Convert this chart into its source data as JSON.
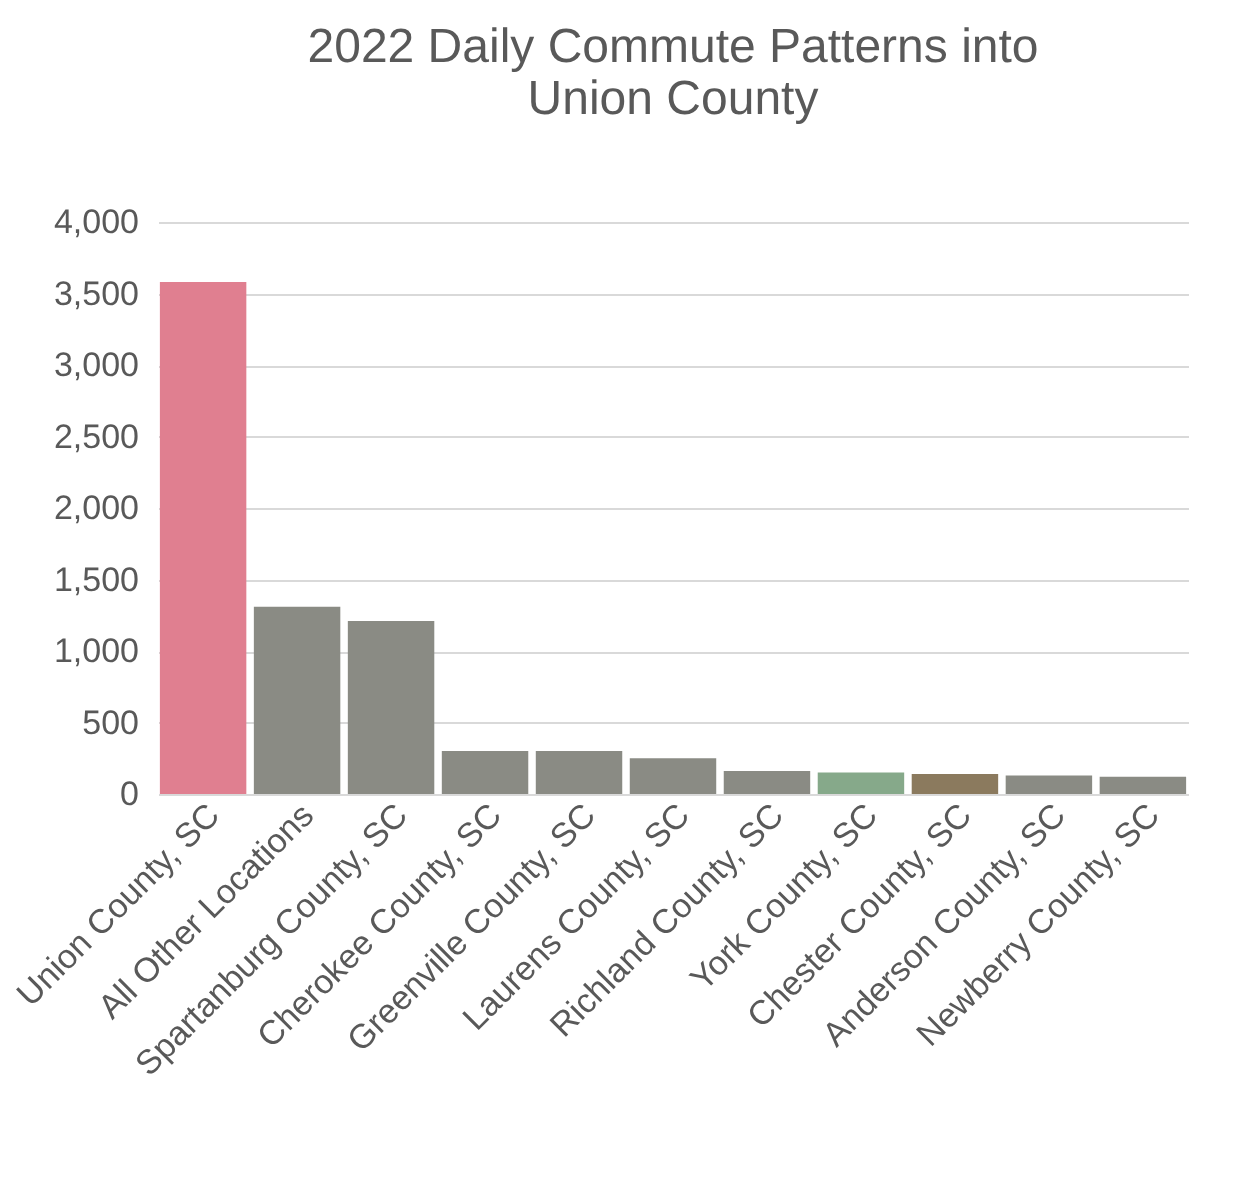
{
  "chart_data": {
    "type": "bar",
    "title": [
      "2022 Daily Commute Patterns into",
      "Union County"
    ],
    "categories": [
      "Union County, SC",
      "All Other Locations",
      "Spartanburg County, SC",
      "Cherokee County, SC",
      "Greenville County, SC",
      "Laurens County, SC",
      "Richland County, SC",
      "York County, SC",
      "Chester County, SC",
      "Anderson County, SC",
      "Newberry County, SC"
    ],
    "values": [
      3580,
      1310,
      1210,
      300,
      300,
      250,
      160,
      150,
      140,
      130,
      120
    ],
    "colors": [
      "#e07f90",
      "#8a8b84",
      "#8a8b84",
      "#8a8b84",
      "#8a8b84",
      "#8a8b84",
      "#8a8b84",
      "#86a98a",
      "#8b7a5e",
      "#8a8b84",
      "#8a8b84"
    ],
    "ylim": [
      0,
      4000
    ],
    "yticks": [
      0,
      500,
      {
        "value": 1000,
        "label": "1,000"
      },
      {
        "value": 1500,
        "label": "1,500"
      },
      {
        "value": 2000,
        "label": "2,000"
      },
      {
        "value": 2500,
        "label": "2,500"
      },
      {
        "value": 3000,
        "label": "3,000"
      },
      {
        "value": 3500,
        "label": "3,500"
      },
      {
        "value": 4000,
        "label": "4,000"
      }
    ],
    "grid": "y"
  }
}
